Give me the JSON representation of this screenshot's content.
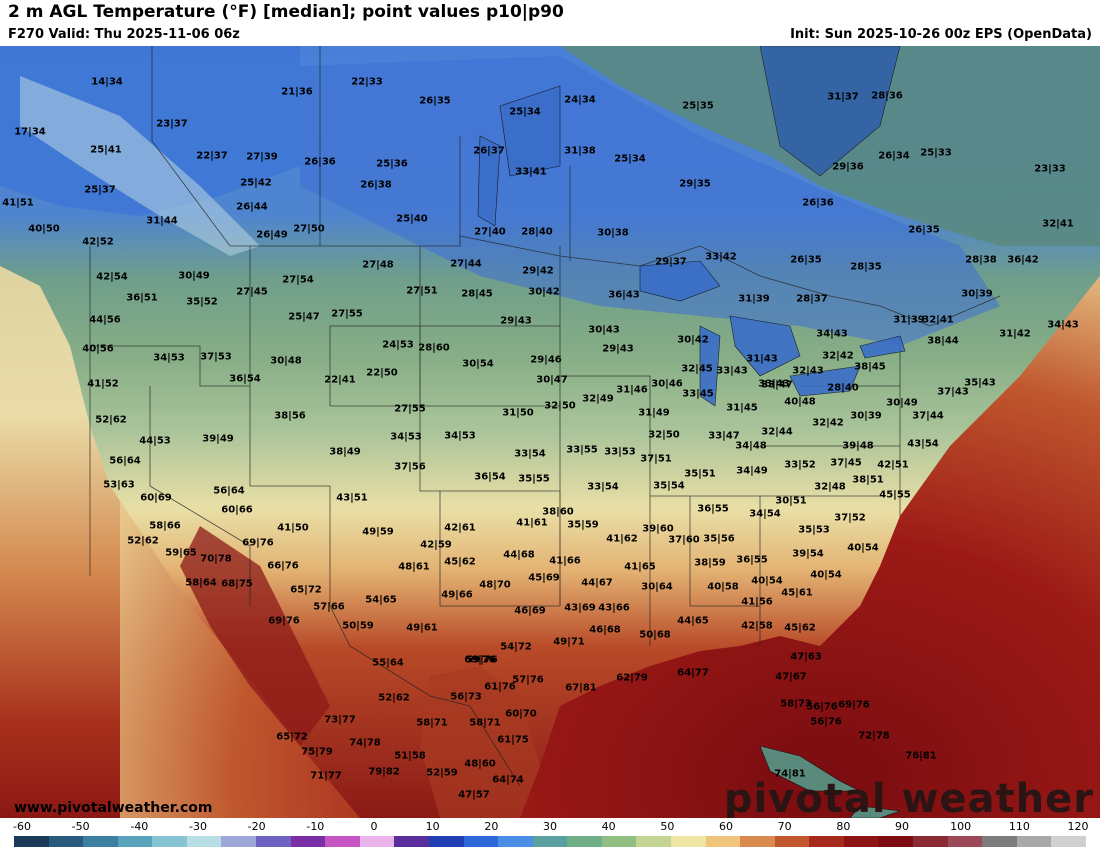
{
  "header": {
    "title": "2 m AGL Temperature (°F) [median]; point values p10|p90",
    "valid": "F270 Valid: Thu 2025-11-06 06z",
    "init": "Init: Sun 2025-10-26 00z EPS (OpenData)"
  },
  "map": {
    "point_values": [
      "14|34",
      "22|33",
      "21|36",
      "17|34",
      "23|37",
      "26|35",
      "25|34",
      "24|34",
      "25|35",
      "31|37",
      "28|36",
      "25|41",
      "22|37",
      "27|39",
      "26|36",
      "25|36",
      "26|37",
      "31|38",
      "25|34",
      "29|36",
      "26|34",
      "25|33",
      "23|33",
      "25|37",
      "25|42",
      "26|38",
      "33|41",
      "29|35",
      "41|51",
      "26|44",
      "25|40",
      "26|36",
      "32|41",
      "31|44",
      "27|50",
      "26|49",
      "27|40",
      "28|40",
      "30|38",
      "26|35",
      "40|50",
      "42|52",
      "29|37",
      "33|42",
      "26|35",
      "28|35",
      "28|38",
      "36|42",
      "42|54",
      "30|49",
      "27|54",
      "27|48",
      "27|44",
      "29|42",
      "36|51",
      "35|52",
      "27|45",
      "27|51",
      "28|45",
      "30|42",
      "36|43",
      "31|39",
      "28|37",
      "30|39",
      "44|56",
      "25|47",
      "27|55",
      "29|43",
      "31|39",
      "32|41",
      "31|42",
      "34|43",
      "40|56",
      "24|53",
      "28|60",
      "30|43",
      "30|42",
      "34|43",
      "38|44",
      "34|53",
      "37|53",
      "30|48",
      "30|54",
      "29|43",
      "32|42",
      "32|43",
      "33|43",
      "36|54",
      "22|41",
      "22|50",
      "29|46",
      "32|45",
      "33|43",
      "31|43",
      "38|45",
      "41|52",
      "30|47",
      "31|46",
      "30|46",
      "33|45",
      "33|47",
      "28|40",
      "35|43",
      "37|43",
      "52|62",
      "38|56",
      "27|55",
      "31|50",
      "32|50",
      "32|49",
      "40|48",
      "30|39",
      "30|49",
      "44|53",
      "39|49",
      "34|53",
      "34|53",
      "31|49",
      "31|45",
      "32|42",
      "37|44",
      "38|49",
      "33|54",
      "33|55",
      "33|53",
      "32|50",
      "33|47",
      "32|44",
      "39|48",
      "43|54",
      "56|64",
      "37|56",
      "36|54",
      "35|55",
      "37|51",
      "34|48",
      "33|52",
      "37|45",
      "42|51",
      "53|63",
      "56|64",
      "33|54",
      "35|54",
      "35|51",
      "34|49",
      "32|48",
      "38|51",
      "60|69",
      "43|51",
      "38|60",
      "36|55",
      "30|51",
      "45|55",
      "60|66",
      "35|59",
      "34|54",
      "37|52",
      "58|66",
      "41|50",
      "49|59",
      "42|61",
      "41|61",
      "39|60",
      "35|53",
      "52|62",
      "69|76",
      "42|59",
      "41|62",
      "37|60",
      "35|56",
      "39|54",
      "40|54",
      "59|65",
      "70|78",
      "45|62",
      "44|68",
      "41|66",
      "38|59",
      "36|55",
      "58|64",
      "68|75",
      "66|76",
      "48|61",
      "41|65",
      "40|54",
      "65|72",
      "49|66",
      "45|69",
      "44|67",
      "40|58",
      "40|54",
      "57|66",
      "54|65",
      "48|70",
      "30|64",
      "45|61",
      "69|76",
      "50|59",
      "49|61",
      "46|69",
      "43|69",
      "43|66",
      "41|56",
      "42|58",
      "45|62",
      "46|68",
      "50|68",
      "44|65",
      "55|64",
      "54|72",
      "49|71",
      "69|76",
      "59|76",
      "47|63",
      "62|79",
      "64|77",
      "67|81",
      "57|76",
      "47|67",
      "52|62",
      "56|73",
      "61|76",
      "58|73",
      "56|76",
      "69|76",
      "73|77",
      "58|71",
      "58|71",
      "56|76",
      "65|72",
      "74|78",
      "60|70",
      "61|75",
      "72|78",
      "75|79",
      "51|58",
      "48|60",
      "76|81",
      "71|77",
      "79|82",
      "52|59",
      "64|74",
      "74|81",
      "47|57"
    ],
    "site": "www.pivotalweather.com",
    "brand": "pivotal weather"
  },
  "legend": {
    "ticks": [
      "-60",
      "-50",
      "-40",
      "-30",
      "-20",
      "-10",
      "0",
      "10",
      "20",
      "30",
      "40",
      "50",
      "60",
      "70",
      "80",
      "90",
      "100",
      "110",
      "120"
    ],
    "colors": [
      "#1b3a5a",
      "#2a5a7e",
      "#3d7fa0",
      "#5aa3bd",
      "#86c3d3",
      "#b7dde5",
      "#9fa7d8",
      "#6f63c2",
      "#7a2fa6",
      "#c455c2",
      "#e9b4ea",
      "#5a2e9c",
      "#1f3fb2",
      "#2c68d8",
      "#4a8ee6",
      "#5aa0a0",
      "#6fae86",
      "#90be82",
      "#c3d492",
      "#efe6a6",
      "#f0c47a",
      "#d98a4e",
      "#c2582e",
      "#a52a1c",
      "#8c1414",
      "#7c0c10",
      "#8c2a34",
      "#9c4a5a",
      "#7c7c7c",
      "#a8a8a8",
      "#d0d0d0"
    ]
  }
}
